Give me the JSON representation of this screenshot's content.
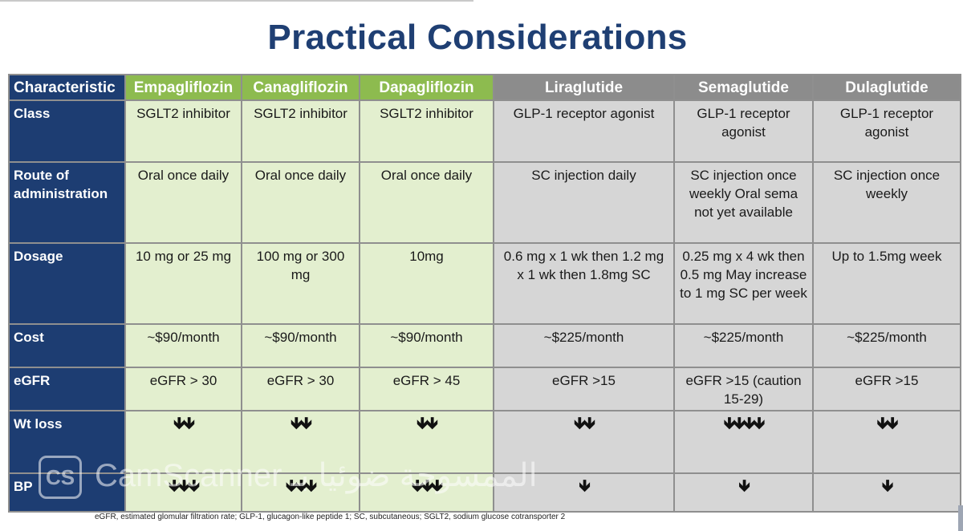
{
  "title": "Practical Considerations",
  "headers": {
    "characteristic": "Characteristic",
    "drugs": [
      "Empagliflozin",
      "Canagliflozin",
      "Dapagliflozin",
      "Liraglutide",
      "Semaglutide",
      "Dulaglutide"
    ]
  },
  "rows": [
    {
      "label": "Class",
      "cells": [
        "SGLT2 inhibitor",
        "SGLT2 inhibitor",
        "SGLT2 inhibitor",
        "GLP-1 receptor agonist",
        "GLP-1 receptor agonist",
        "GLP-1 receptor agonist"
      ]
    },
    {
      "label": "Route of administration",
      "cells": [
        "Oral once daily",
        "Oral once daily",
        "Oral once daily",
        "SC injection daily",
        "SC injection once weekly Oral sema not yet available",
        "SC injection once weekly"
      ]
    },
    {
      "label": "Dosage",
      "cells": [
        "10 mg or 25 mg",
        "100 mg or 300 mg",
        "10mg",
        "0.6 mg x 1 wk then 1.2 mg x 1 wk then 1.8mg SC",
        "0.25 mg x 4 wk then 0.5 mg May increase to 1 mg SC per week",
        "Up to 1.5mg week"
      ]
    },
    {
      "label": "Cost",
      "cells": [
        "~$90/month",
        "~$90/month",
        "~$90/month",
        "~$225/month",
        "~$225/month",
        "~$225/month"
      ]
    },
    {
      "label": "eGFR",
      "cells": [
        "eGFR > 30",
        "eGFR > 30",
        "eGFR > 45",
        "eGFR >15",
        "eGFR >15 (caution 15-29)",
        "eGFR >15"
      ]
    },
    {
      "label": "Wt loss",
      "cells": [
        "🡻🡻",
        "🡻🡻",
        "🡻🡻",
        "🡻🡻",
        "🡻🡻🡻🡻",
        "🡻🡻"
      ]
    },
    {
      "label": "BP",
      "cells": [
        "🡻🡻🡻",
        "🡻🡻🡻",
        "🡻🡻🡻",
        "🡻",
        "🡻",
        "🡻"
      ]
    }
  ],
  "footnote": "eGFR, estimated glomular filtration rate; GLP-1, glucagon-like peptide 1; SC, subcutaneous; SGLT2, sodium glucose cotransporter 2",
  "watermark": {
    "logo": "CS",
    "text": "CamScanner",
    "arabic": "الممسوحة ضوئيا بـ"
  }
}
